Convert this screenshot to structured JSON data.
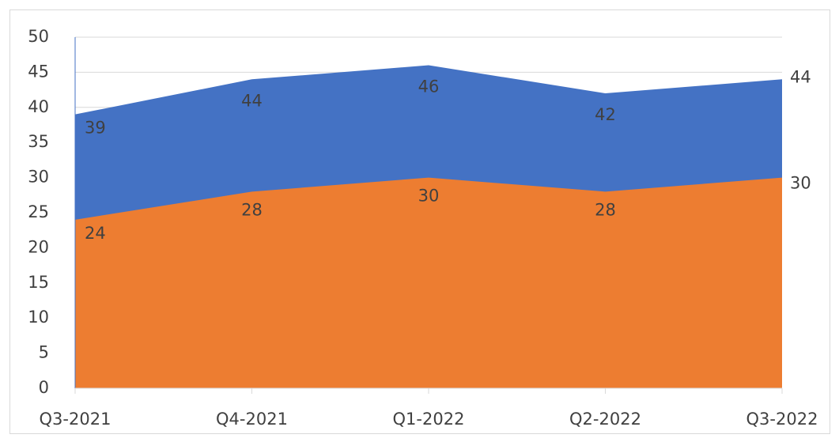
{
  "chart_data": {
    "type": "area",
    "categories": [
      "Q3-2021",
      "Q4-2021",
      "Q1-2022",
      "Q2-2022",
      "Q3-2022"
    ],
    "series": [
      {
        "color": "#4472c4",
        "values": [
          39,
          44,
          46,
          42,
          44
        ]
      },
      {
        "color": "#ed7d31",
        "values": [
          24,
          28,
          30,
          28,
          30
        ]
      }
    ],
    "ylim": [
      0,
      50
    ],
    "yticks": [
      0,
      5,
      10,
      15,
      20,
      25,
      30,
      35,
      40,
      45,
      50
    ],
    "grid": true
  }
}
